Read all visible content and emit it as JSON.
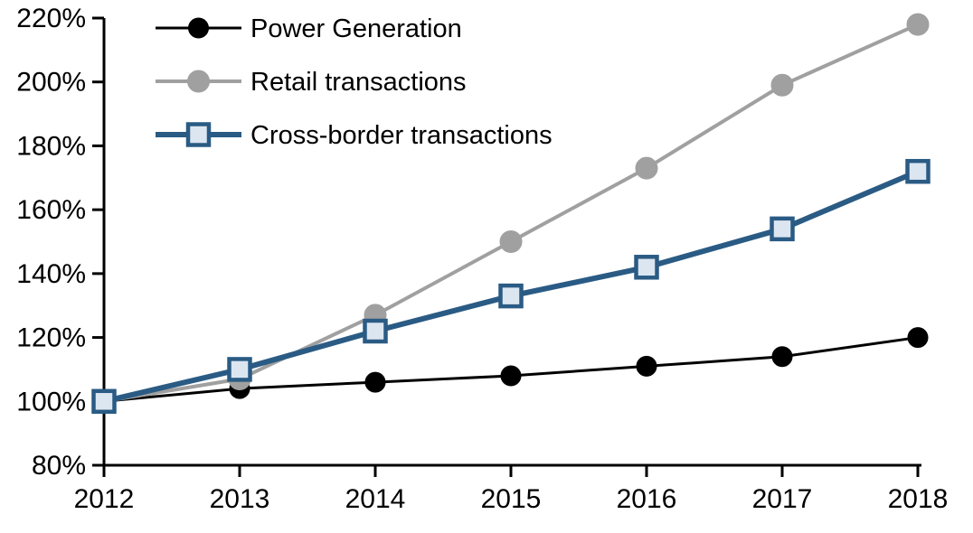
{
  "chart_data": {
    "type": "line",
    "title": "",
    "xlabel": "",
    "ylabel": "",
    "x": [
      2012,
      2013,
      2014,
      2015,
      2016,
      2017,
      2018
    ],
    "xtick_labels": [
      "2012",
      "2013",
      "2014",
      "2015",
      "2016",
      "2017",
      "2018"
    ],
    "ylim": [
      80,
      220
    ],
    "ytick_step": 20,
    "ytick_labels": [
      "80%",
      "100%",
      "120%",
      "140%",
      "160%",
      "180%",
      "200%",
      "220%"
    ],
    "grid": false,
    "legend_position": "top-left",
    "axis_color": "#000000",
    "series": [
      {
        "name": "Power Generation",
        "values": [
          100,
          104,
          106,
          108,
          111,
          114,
          120
        ],
        "line_color": "#000000",
        "line_width": 3,
        "marker": "circle",
        "marker_fill": "#000000",
        "marker_border": "#000000",
        "marker_radius": 11
      },
      {
        "name": "Retail transactions",
        "values": [
          100,
          107,
          127,
          150,
          173,
          199,
          218
        ],
        "line_color": "#A0A0A0",
        "line_width": 4,
        "marker": "circle",
        "marker_fill": "#A0A0A0",
        "marker_border": "#A0A0A0",
        "marker_radius": 12
      },
      {
        "name": "Cross-border transactions",
        "values": [
          100,
          110,
          122,
          133,
          142,
          154,
          172
        ],
        "line_color": "#2A5B84",
        "line_width": 6,
        "marker": "square",
        "marker_fill": "#DCE6F1",
        "marker_border": "#2A5B84",
        "marker_size": 23,
        "marker_border_width": 4.5
      }
    ]
  }
}
